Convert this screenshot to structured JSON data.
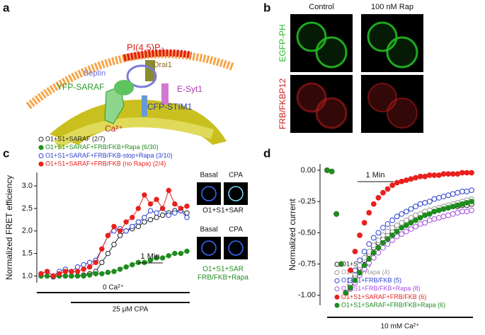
{
  "panel_labels": [
    "a",
    "b",
    "c",
    "d"
  ],
  "diagram": {
    "lipid": "PI(4,5)P₂",
    "orai": "Orai1",
    "septin": "Septin",
    "saraf": "YFP-SARAF",
    "esyt": "E-Syt1",
    "stim": "CFP-STIM1",
    "calcium": "Ca²⁺"
  },
  "micrographs": {
    "columns": [
      "Control",
      "100 nM Rap"
    ],
    "rows": [
      {
        "label": "EGFP-PH",
        "color": "#22b822"
      },
      {
        "label": "FRB/FKBP12",
        "color": "#c81e1e"
      }
    ]
  },
  "insets": [
    {
      "labels": [
        "Basal",
        "CPA"
      ],
      "caption": [
        "O1+S1+SAR"
      ],
      "color": "#111111"
    },
    {
      "labels": [
        "Basal",
        "CPA"
      ],
      "caption": [
        "O1+S1+SAR",
        "FRB/FKB+Rapa"
      ],
      "color": "#1e8c1e"
    }
  ],
  "chart_data": [
    {
      "type": "line",
      "y_label": "Normalized FRET efficiency",
      "ylim": [
        0.85,
        3.3
      ],
      "yticks": [
        {
          "value": 1,
          "label": "1.0"
        },
        {
          "value": 1.5,
          "label": "1.5"
        },
        {
          "value": 2,
          "label": "2.0"
        },
        {
          "value": 2.5,
          "label": "2.5"
        },
        {
          "value": 3,
          "label": "3.0"
        }
      ],
      "scale_bar": "1 Min",
      "bars": [
        "0 Ca²⁺",
        "25 μM CPA"
      ],
      "series": [
        {
          "name": "O1+S1+SARAF (2/7)",
          "color": "#222222",
          "filled": false,
          "values": [
            1.0,
            1.0,
            0.98,
            1.0,
            1.0,
            1.0,
            1.0,
            1.02,
            1.05,
            1.1,
            1.3,
            1.5,
            1.7,
            1.9,
            2.0,
            2.05,
            2.1,
            2.2,
            2.25,
            2.3,
            2.35,
            2.4,
            2.45,
            2.45,
            2.4
          ]
        },
        {
          "name": "O1+S1+SARAF+FRB/FKB+Rapa (6/30)",
          "color": "#1e8c1e",
          "filled": true,
          "values": [
            1.0,
            1.0,
            1.0,
            1.0,
            1.0,
            1.0,
            1.0,
            1.0,
            1.02,
            1.05,
            1.05,
            1.08,
            1.1,
            1.15,
            1.2,
            1.25,
            1.3,
            1.3,
            1.35,
            1.4,
            1.4,
            1.45,
            1.5,
            1.5,
            1.55
          ]
        },
        {
          "name": "O1+S1+SARAF+FRB/FKB-stop+Rapa (3/10)",
          "color": "#2b3fd0",
          "filled": false,
          "values": [
            1.05,
            1.1,
            1.0,
            1.1,
            1.15,
            1.1,
            1.2,
            1.25,
            1.3,
            1.35,
            1.6,
            1.9,
            2.0,
            2.05,
            2.0,
            2.1,
            2.2,
            2.3,
            2.45,
            2.4,
            2.5,
            2.35,
            2.4,
            2.45,
            2.3
          ]
        },
        {
          "name": "O1+S1+SARAF+FRB/FKB (no Rapa) (2/4)",
          "color": "#e8201e",
          "filled": true,
          "values": [
            1.05,
            1.1,
            1.0,
            1.05,
            1.1,
            1.1,
            1.1,
            1.15,
            1.2,
            1.3,
            1.6,
            1.9,
            2.1,
            2.0,
            2.2,
            2.3,
            2.5,
            2.8,
            2.6,
            2.7,
            2.5,
            2.9,
            2.6,
            2.5,
            2.55
          ]
        }
      ]
    },
    {
      "type": "scatter",
      "y_label": "Normalized current",
      "ylim": [
        -1.08,
        0.05
      ],
      "yticks": [
        {
          "value": -1,
          "label": "-1.00"
        },
        {
          "value": -0.75,
          "label": "-0.75"
        },
        {
          "value": -0.5,
          "label": "-0.50"
        },
        {
          "value": -0.25,
          "label": "-0.25"
        },
        {
          "value": 0,
          "label": "0.00"
        }
      ],
      "scale_bar": "1 Min",
      "bars": [
        "10 mM Ca²⁺"
      ],
      "series": [
        {
          "name": "O1+S1 (4)",
          "color": "#222222",
          "filled": false,
          "values": [
            0,
            -0.01,
            -0.35,
            -0.75,
            -0.98,
            -0.92,
            -0.85,
            -0.78,
            -0.72,
            -0.67,
            -0.62,
            -0.58,
            -0.55,
            -0.52,
            -0.49,
            -0.46,
            -0.44,
            -0.42,
            -0.4,
            -0.38,
            -0.36,
            -0.35,
            -0.34,
            -0.33,
            -0.32,
            -0.31,
            -0.3,
            -0.29,
            -0.29,
            -0.28,
            -0.28,
            -0.27
          ]
        },
        {
          "name": "O1+S1+Rapa (4)",
          "color": "#999999",
          "filled": false,
          "values": [
            0,
            -0.01,
            -0.35,
            -0.75,
            -0.98,
            -0.9,
            -0.83,
            -0.76,
            -0.7,
            -0.65,
            -0.6,
            -0.56,
            -0.52,
            -0.49,
            -0.46,
            -0.44,
            -0.42,
            -0.4,
            -0.38,
            -0.36,
            -0.35,
            -0.33,
            -0.32,
            -0.31,
            -0.3,
            -0.29,
            -0.28,
            -0.27,
            -0.26,
            -0.25,
            -0.24,
            -0.23
          ]
        },
        {
          "name": "O1+S1+FRB/FKB (5)",
          "color": "#2b3fd0",
          "filled": false,
          "values": [
            0,
            -0.01,
            -0.35,
            -0.75,
            -0.98,
            -0.88,
            -0.8,
            -0.72,
            -0.65,
            -0.59,
            -0.54,
            -0.5,
            -0.46,
            -0.43,
            -0.4,
            -0.37,
            -0.35,
            -0.33,
            -0.31,
            -0.29,
            -0.27,
            -0.26,
            -0.25,
            -0.23,
            -0.22,
            -0.21,
            -0.2,
            -0.19,
            -0.18,
            -0.17,
            -0.17,
            -0.16
          ]
        },
        {
          "name": "O1+S1+FRB/FKB+Rapa (8)",
          "color": "#a64ee0",
          "filled": false,
          "values": [
            0,
            -0.01,
            -0.35,
            -0.75,
            -0.98,
            -0.95,
            -0.9,
            -0.84,
            -0.79,
            -0.74,
            -0.7,
            -0.66,
            -0.62,
            -0.59,
            -0.56,
            -0.53,
            -0.51,
            -0.49,
            -0.47,
            -0.45,
            -0.43,
            -0.42,
            -0.4,
            -0.39,
            -0.38,
            -0.37,
            -0.36,
            -0.35,
            -0.34,
            -0.33,
            -0.33,
            -0.32
          ]
        },
        {
          "name": "O1+S1+SARAF+FRB/FKB (6)",
          "color": "#e8201e",
          "filled": true,
          "values": [
            0,
            -0.01,
            -0.35,
            -0.75,
            -0.98,
            -0.8,
            -0.65,
            -0.52,
            -0.42,
            -0.34,
            -0.27,
            -0.22,
            -0.18,
            -0.15,
            -0.12,
            -0.1,
            -0.09,
            -0.08,
            -0.07,
            -0.06,
            -0.05,
            -0.05,
            -0.04,
            -0.04,
            -0.04,
            -0.03,
            -0.03,
            -0.03,
            -0.03,
            -0.02,
            -0.02,
            -0.02
          ]
        },
        {
          "name": "O1+S1+SARAF+FRB/FKB+Rapa (6)",
          "color": "#1e8c1e",
          "filled": true,
          "values": [
            0,
            -0.01,
            -0.35,
            -0.75,
            -0.98,
            -0.94,
            -0.88,
            -0.82,
            -0.76,
            -0.71,
            -0.66,
            -0.62,
            -0.58,
            -0.55,
            -0.52,
            -0.49,
            -0.46,
            -0.44,
            -0.42,
            -0.4,
            -0.38,
            -0.36,
            -0.35,
            -0.33,
            -0.32,
            -0.31,
            -0.3,
            -0.29,
            -0.28,
            -0.27,
            -0.26,
            -0.25
          ]
        }
      ]
    }
  ]
}
